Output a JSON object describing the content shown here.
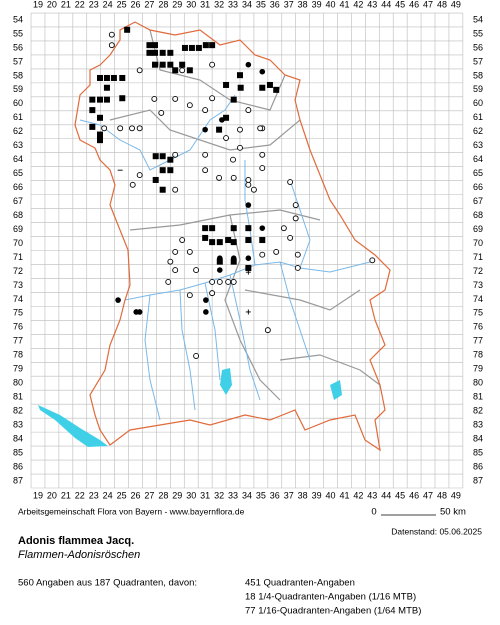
{
  "map": {
    "columns": [
      19,
      20,
      21,
      22,
      23,
      24,
      25,
      26,
      27,
      28,
      29,
      30,
      31,
      32,
      33,
      34,
      35,
      36,
      37,
      38,
      39,
      40,
      41,
      42,
      43,
      44,
      45,
      46,
      47,
      48,
      49
    ],
    "rows": [
      54,
      55,
      56,
      57,
      58,
      59,
      60,
      61,
      62,
      63,
      64,
      65,
      66,
      67,
      68,
      69,
      70,
      71,
      72,
      73,
      74,
      75,
      76,
      77,
      78,
      79,
      80,
      81,
      82,
      83,
      84,
      85,
      86,
      87
    ],
    "markers": [
      {
        "symbol": "square",
        "color": "#000000",
        "points": [
          [
            25.4,
            54.7
          ],
          [
            27,
            55.8
          ],
          [
            27.4,
            55.8
          ],
          [
            27,
            56.35
          ],
          [
            27.4,
            56.35
          ],
          [
            27.95,
            56.35
          ],
          [
            28.5,
            56.35
          ],
          [
            29.55,
            56
          ],
          [
            30.05,
            56
          ],
          [
            30.55,
            56
          ],
          [
            31.05,
            55.8
          ],
          [
            31.5,
            55.8
          ],
          [
            27.4,
            57.2
          ],
          [
            27.95,
            57.2
          ],
          [
            28.5,
            57.2
          ],
          [
            29.35,
            57.2
          ],
          [
            29.9,
            57.6
          ],
          [
            28.85,
            57.6
          ],
          [
            23.45,
            58.15
          ],
          [
            23.95,
            58.15
          ],
          [
            24.45,
            58.15
          ],
          [
            25.05,
            58.15
          ],
          [
            23.95,
            58.85
          ],
          [
            23.45,
            59.7
          ],
          [
            22.9,
            59.7
          ],
          [
            23.95,
            59.7
          ],
          [
            25.05,
            59.6
          ],
          [
            22.9,
            60.45
          ],
          [
            23.45,
            61
          ],
          [
            22.9,
            61.65
          ],
          [
            23.45,
            62.2
          ],
          [
            23.45,
            62.6
          ],
          [
            27.45,
            63.75
          ],
          [
            27.95,
            63.75
          ],
          [
            28.5,
            64
          ],
          [
            27.95,
            64.75
          ],
          [
            28.5,
            64.75
          ],
          [
            27.45,
            65.45
          ],
          [
            27.95,
            66.15
          ],
          [
            31,
            68.9
          ],
          [
            31.5,
            68.9
          ],
          [
            31,
            69.6
          ],
          [
            31.5,
            69.9
          ],
          [
            32.05,
            69.9
          ],
          [
            32.65,
            69.75
          ],
          [
            33.05,
            69.9
          ],
          [
            34.1,
            69.75
          ],
          [
            35.1,
            69.75
          ],
          [
            32.05,
            71.3
          ],
          [
            33.05,
            71.3
          ],
          [
            34.1,
            71.75
          ],
          [
            33.05,
            68.9
          ],
          [
            34.1,
            68.9
          ],
          [
            32,
            61.85
          ],
          [
            32.5,
            61
          ],
          [
            33.05,
            59.7
          ],
          [
            33.55,
            58.85
          ],
          [
            32.5,
            58.65
          ],
          [
            33.5,
            57.95
          ],
          [
            35.1,
            58.85
          ],
          [
            35.65,
            58.65
          ],
          [
            36.1,
            59
          ]
        ]
      },
      {
        "symbol": "dot",
        "color": "#000000",
        "points": [
          [
            24.75,
            74.05
          ],
          [
            26.05,
            74.9
          ],
          [
            26.3,
            74.9
          ],
          [
            31.05,
            74.05
          ],
          [
            31.05,
            74.9
          ],
          [
            32.05,
            71.05
          ],
          [
            32.05,
            71.9
          ],
          [
            33.05,
            71.05
          ],
          [
            34.1,
            71.05
          ],
          [
            34.1,
            57.2
          ],
          [
            35.1,
            57.7
          ],
          [
            35.1,
            68.9
          ],
          [
            34.1,
            67.25
          ],
          [
            31,
            61.85
          ],
          [
            32.2,
            61.15
          ]
        ]
      },
      {
        "symbol": "circle",
        "color": "#000000",
        "points": [
          [
            24.3,
            55.05
          ],
          [
            24.3,
            55.8
          ],
          [
            26.3,
            57.6
          ],
          [
            29.35,
            57.6
          ],
          [
            27.35,
            59.65
          ],
          [
            28.85,
            59.65
          ],
          [
            27.85,
            60.65
          ],
          [
            26.3,
            61.75
          ],
          [
            23.75,
            61.75
          ],
          [
            24.9,
            61.75
          ],
          [
            25.75,
            61.75
          ],
          [
            28.85,
            63.65
          ],
          [
            28.85,
            66.15
          ],
          [
            31,
            63.65
          ],
          [
            31,
            64.75
          ],
          [
            32,
            65.3
          ],
          [
            33.05,
            65.3
          ],
          [
            34.1,
            65.45
          ],
          [
            34.5,
            66.15
          ],
          [
            35.1,
            64.6
          ],
          [
            35.1,
            63.65
          ],
          [
            37.1,
            65.6
          ],
          [
            37.5,
            67.25
          ],
          [
            37.5,
            68.2
          ],
          [
            36.65,
            68.9
          ],
          [
            37.1,
            69.6
          ],
          [
            36.1,
            70.6
          ],
          [
            35.1,
            70.8
          ],
          [
            37.65,
            71.75
          ],
          [
            37.65,
            70.8
          ],
          [
            29.35,
            69.75
          ],
          [
            29.9,
            70.6
          ],
          [
            28.85,
            70.6
          ],
          [
            28.5,
            71.3
          ],
          [
            28.85,
            71.9
          ],
          [
            28.35,
            72.75
          ],
          [
            30.35,
            71.9
          ],
          [
            31.5,
            72.75
          ],
          [
            32.05,
            72.75
          ],
          [
            32.65,
            72.75
          ],
          [
            33.05,
            72.75
          ],
          [
            31.5,
            73.55
          ],
          [
            29.9,
            73.7
          ],
          [
            35.5,
            76.2
          ],
          [
            30.35,
            78.05
          ],
          [
            43,
            71.2
          ],
          [
            33,
            64
          ],
          [
            33.5,
            61.85
          ],
          [
            31.5,
            57.2
          ],
          [
            31.5,
            59.6
          ],
          [
            31,
            60.45
          ],
          [
            29.9,
            60.1
          ],
          [
            34.1,
            60.45
          ],
          [
            35.1,
            61.75
          ],
          [
            32.5,
            62.45
          ],
          [
            33.5,
            63.15
          ],
          [
            34.1,
            65.8
          ],
          [
            34.95,
            61.75
          ],
          [
            25.8,
            65.8
          ],
          [
            26.3,
            65.1
          ]
        ]
      },
      {
        "symbol": "plus",
        "color": "#000000",
        "points": [
          [
            34.1,
            74.9
          ],
          [
            34.1,
            72.05
          ]
        ]
      },
      {
        "symbol": "minus",
        "color": "#000000",
        "points": [
          [
            24.9,
            64.75
          ]
        ]
      }
    ]
  },
  "credit": "Arbeitsgemeinschaft Flora von Bayern - www.bayernflora.de",
  "scale": {
    "start": "0",
    "end": "50 km"
  },
  "date": "Datenstand: 05.06.2025",
  "species": {
    "name": "Adonis flammea Jacq.",
    "common": "Flammen-Adonisröschen"
  },
  "stats": {
    "summary": "560 Angaben aus 187 Quadranten, davon:",
    "details": [
      "451 Quadranten-Angaben",
      "18 1/4-Quadranten-Angaben (1/16 MTB)",
      "77 1/16-Quadranten-Angaben (1/64 MTB)"
    ]
  }
}
